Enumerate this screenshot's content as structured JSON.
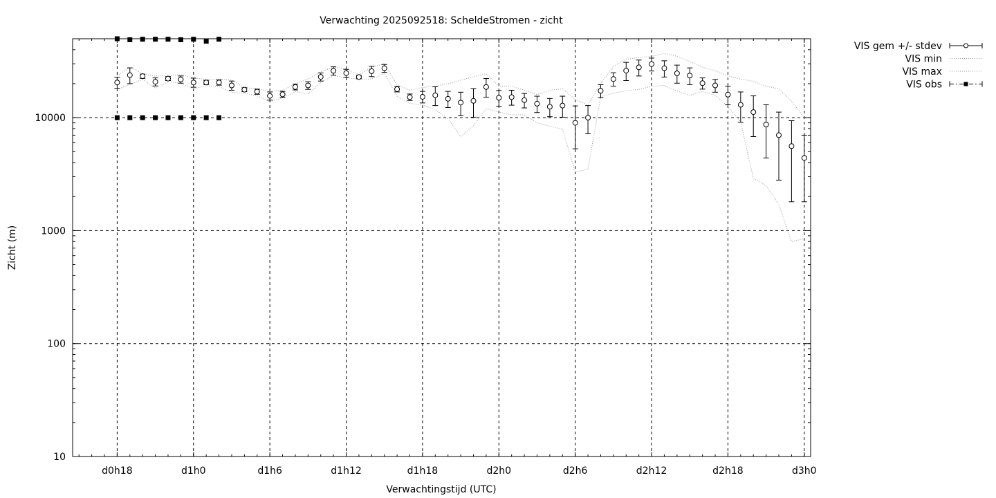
{
  "chart_data": {
    "type": "scatter",
    "title": "Verwachting 2025092518: ScheldeStromen - zicht",
    "xlabel": "Verwachtingstijd (UTC)",
    "ylabel": "Zicht (m)",
    "yscale": "log",
    "ylim": [
      10,
      50000
    ],
    "xlim_hours": [
      -3.5,
      54.5
    ],
    "x_ticks": [
      {
        "label": "d0h18",
        "hour": 0
      },
      {
        "label": "d1h0",
        "hour": 6
      },
      {
        "label": "d1h6",
        "hour": 12
      },
      {
        "label": "d1h12",
        "hour": 18
      },
      {
        "label": "d1h18",
        "hour": 24
      },
      {
        "label": "d2h0",
        "hour": 30
      },
      {
        "label": "d2h6",
        "hour": 36
      },
      {
        "label": "d2h12",
        "hour": 42
      },
      {
        "label": "d2h18",
        "hour": 48
      },
      {
        "label": "d3h0",
        "hour": 54
      }
    ],
    "y_ticks": [
      10,
      100,
      1000,
      10000
    ],
    "y_tick_labels": [
      "10",
      "100",
      "1000",
      "10000"
    ],
    "grid": true,
    "legend_position": "outside-top-right",
    "series": [
      {
        "name": "VIS gem +/- stdev",
        "x": [
          0,
          1,
          2,
          3,
          4,
          5,
          6,
          7,
          8,
          9,
          10,
          11,
          12,
          13,
          14,
          15,
          16,
          17,
          18,
          19,
          20,
          21,
          22,
          23,
          24,
          25,
          26,
          27,
          28,
          29,
          30,
          31,
          32,
          33,
          34,
          35,
          36,
          37,
          38,
          39,
          40,
          41,
          42,
          43,
          44,
          45,
          46,
          47,
          48,
          49,
          50,
          51,
          52,
          53,
          54
        ],
        "y": [
          20500,
          23800,
          23300,
          20800,
          22200,
          21800,
          20500,
          20500,
          20500,
          19300,
          17700,
          17000,
          15600,
          16100,
          18700,
          19300,
          23000,
          26000,
          24800,
          22900,
          25800,
          27400,
          17900,
          15200,
          15300,
          15800,
          14700,
          13600,
          14100,
          18700,
          15000,
          15200,
          14300,
          13300,
          12500,
          12800,
          9000,
          10000,
          17300,
          22000,
          26100,
          27900,
          29800,
          27400,
          24700,
          23600,
          20200,
          19300,
          16000,
          13000,
          11200,
          8700,
          7000,
          5600,
          4400
        ],
        "err": [
          2300,
          3800,
          1000,
          1700,
          900,
          1600,
          1900,
          900,
          1100,
          1800,
          700,
          900,
          1300,
          1000,
          1100,
          1500,
          1900,
          2200,
          2000,
          800,
          2700,
          2200,
          1000,
          1000,
          1800,
          3000,
          2400,
          3200,
          4000,
          3500,
          2400,
          2300,
          2100,
          2200,
          2300,
          2700,
          3700,
          2800,
          2300,
          3000,
          4800,
          4500,
          3900,
          4500,
          4500,
          4000,
          2300,
          2500,
          3000,
          3900,
          4400,
          4300,
          4200,
          3800,
          2600
        ]
      },
      {
        "name": "VIS min",
        "x": [
          0,
          1,
          2,
          3,
          4,
          5,
          6,
          7,
          8,
          9,
          10,
          11,
          12,
          13,
          14,
          15,
          16,
          17,
          18,
          19,
          20,
          21,
          22,
          23,
          24,
          25,
          26,
          27,
          28,
          29,
          30,
          31,
          32,
          33,
          34,
          35,
          36,
          37,
          38,
          39,
          40,
          41,
          42,
          43,
          44,
          45,
          46,
          47,
          48,
          49,
          50,
          51,
          52,
          53,
          54
        ],
        "y": [
          17800,
          19700,
          21800,
          18200,
          20800,
          20200,
          18000,
          19200,
          18800,
          16800,
          16500,
          15600,
          13900,
          15000,
          17000,
          16300,
          20500,
          23500,
          22600,
          22000,
          22000,
          24700,
          15500,
          13400,
          12900,
          11800,
          9800,
          6800,
          8500,
          12000,
          11200,
          10600,
          10600,
          9000,
          8400,
          7900,
          3300,
          3500,
          15300,
          16500,
          17300,
          17800,
          18900,
          19300,
          17200,
          15800,
          17000,
          15800,
          12500,
          9200,
          2900,
          2500,
          1700,
          800,
          850
        ]
      },
      {
        "name": "VIS max",
        "x": [
          0,
          1,
          2,
          3,
          4,
          5,
          6,
          7,
          8,
          9,
          10,
          11,
          12,
          13,
          14,
          15,
          16,
          17,
          18,
          19,
          20,
          21,
          22,
          23,
          24,
          25,
          26,
          27,
          28,
          29,
          30,
          31,
          32,
          33,
          34,
          35,
          36,
          37,
          38,
          39,
          40,
          41,
          42,
          43,
          44,
          45,
          46,
          47,
          48,
          49,
          50,
          51,
          52,
          53,
          54
        ],
        "y": [
          23500,
          28000,
          24500,
          23300,
          23700,
          24000,
          22500,
          21800,
          22000,
          21500,
          18500,
          18000,
          17200,
          17500,
          20000,
          22000,
          25500,
          28000,
          27000,
          24000,
          28000,
          30000,
          19500,
          17500,
          18500,
          19000,
          20000,
          21500,
          23000,
          24500,
          19000,
          19000,
          17500,
          16000,
          17500,
          18000,
          14500,
          13000,
          20000,
          28500,
          33000,
          34000,
          35000,
          37000,
          35000,
          31500,
          28000,
          26000,
          23500,
          22000,
          21000,
          19000,
          18000,
          14000,
          10000
        ]
      },
      {
        "name": "VIS obs",
        "x": [
          0,
          1,
          2,
          3,
          4,
          5,
          6,
          7,
          8
        ],
        "y": [
          50000,
          49000,
          49500,
          49500,
          49500,
          49000,
          49500,
          47500,
          49500
        ],
        "y2": [
          10000,
          10000,
          10000,
          10000,
          10000,
          10000,
          10000,
          10000,
          10000
        ]
      }
    ]
  }
}
